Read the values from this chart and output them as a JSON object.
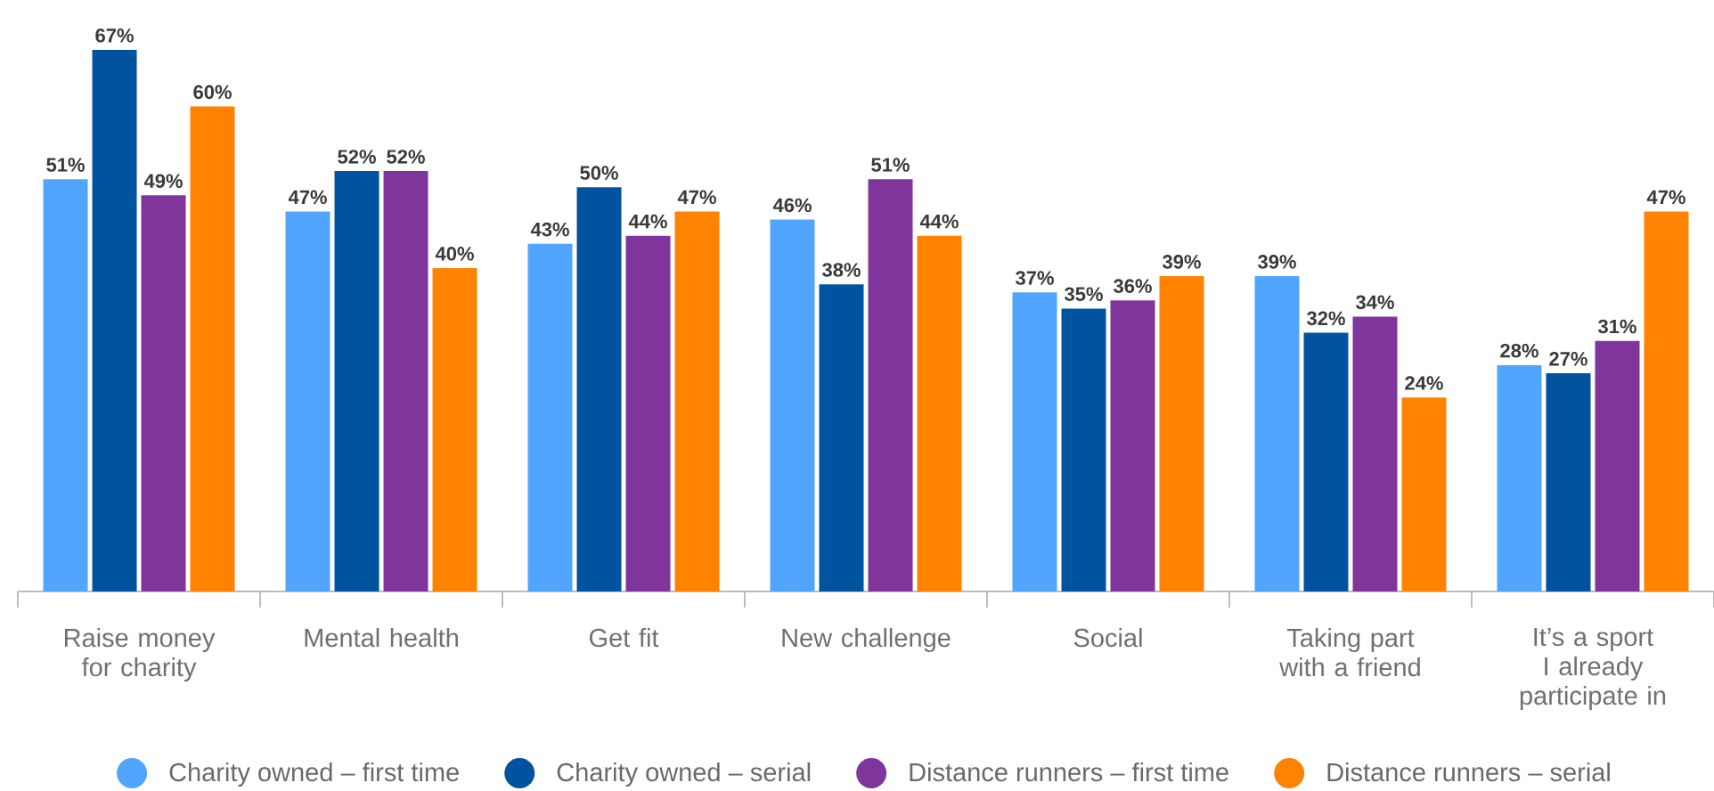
{
  "chart_data": {
    "type": "bar",
    "categories": [
      "Raise money for charity",
      "Mental health",
      "Get fit",
      "New challenge",
      "Social",
      "Taking part with a friend",
      "It’s a sport I already participate in"
    ],
    "series": [
      {
        "name": "Charity owned – first time",
        "color": "#52a5fd",
        "values": [
          51,
          47,
          43,
          46,
          37,
          39,
          28
        ],
        "value_labels": [
          "51%",
          "47%",
          "43%",
          "46%",
          "37%",
          "39%",
          "28%"
        ]
      },
      {
        "name": "Charity owned – serial",
        "color": "#00539f",
        "values": [
          67,
          52,
          50,
          38,
          35,
          32,
          27
        ],
        "value_labels": [
          "67%",
          "52%",
          "50%",
          "38%",
          "35%",
          "32%",
          "27%"
        ]
      },
      {
        "name": "Distance runners – first time",
        "color": "#7f359b",
        "values": [
          49,
          52,
          44,
          51,
          36,
          34,
          31
        ],
        "value_labels": [
          "49%",
          "52%",
          "44%",
          "51%",
          "36%",
          "34%",
          "31%"
        ]
      },
      {
        "name": "Distance runners – serial",
        "color": "#ff8300",
        "values": [
          60,
          40,
          47,
          44,
          39,
          24,
          47
        ],
        "value_labels": [
          "60%",
          "40%",
          "47%",
          "44%",
          "39%",
          "24%",
          "47%"
        ]
      }
    ],
    "legend": "bottom"
  }
}
